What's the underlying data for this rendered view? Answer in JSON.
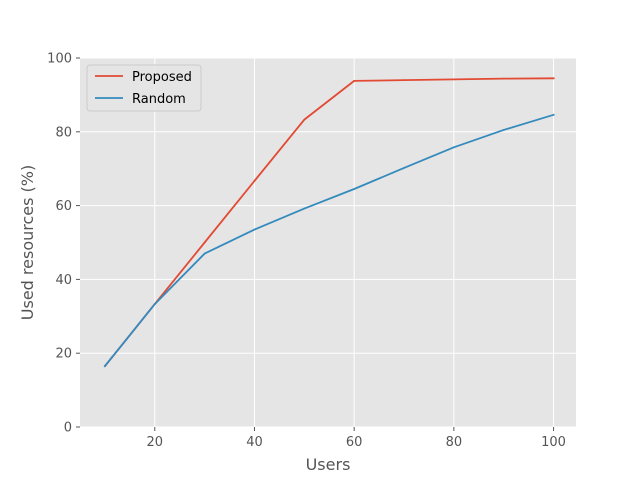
{
  "chart_data": {
    "type": "line",
    "title": "",
    "xlabel": "Users",
    "ylabel": "Used resources (%)",
    "xlim": [
      5,
      104.5
    ],
    "ylim": [
      0,
      100
    ],
    "x_ticks": [
      20,
      40,
      60,
      80,
      100
    ],
    "y_ticks": [
      0,
      20,
      40,
      60,
      80,
      100
    ],
    "grid": true,
    "legend_position": "upper-left",
    "series": [
      {
        "name": "Proposed",
        "color": "#E24A33",
        "x": [
          10,
          20,
          30,
          40,
          50,
          60,
          70,
          80,
          90,
          100
        ],
        "y": [
          16.5,
          33.3,
          50.0,
          66.7,
          83.3,
          93.8,
          94.0,
          94.2,
          94.4,
          94.5
        ]
      },
      {
        "name": "Random",
        "color": "#348ABD",
        "x": [
          10,
          20,
          30,
          40,
          50,
          60,
          70,
          80,
          90,
          100
        ],
        "y": [
          16.5,
          33.3,
          47.0,
          53.5,
          59.2,
          64.5,
          70.2,
          75.8,
          80.5,
          84.6
        ]
      }
    ]
  },
  "colors": {
    "plot_background": "#E5E5E5",
    "grid": "#FFFFFF",
    "text": "#555555"
  }
}
